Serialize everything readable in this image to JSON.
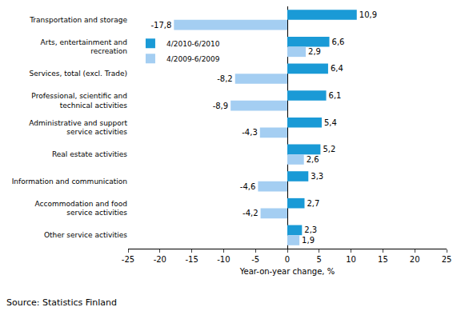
{
  "chart_data": {
    "type": "bar",
    "orientation": "horizontal",
    "categories": [
      "Transportation and storage",
      "Arts, entertainment and recreation",
      "Services, total (excl. Trade)",
      "Professional, scientific and technical activities",
      "Administrative and support service activities",
      "Real estate activities",
      "Information and communication",
      "Accommodation and food service activities",
      "Other service activities"
    ],
    "series": [
      {
        "name": "4/2010-6/2010",
        "color": "#1a9ad6",
        "values": [
          10.9,
          6.6,
          6.4,
          6.1,
          5.4,
          5.2,
          3.3,
          2.7,
          2.3
        ],
        "value_labels": [
          "10,9",
          "6,6",
          "6,4",
          "6,1",
          "5,4",
          "5,2",
          "3,3",
          "2,7",
          "2,3"
        ]
      },
      {
        "name": "4/2009-6/2009",
        "color": "#a4cef2",
        "values": [
          -17.8,
          2.9,
          -8.2,
          -8.9,
          -4.3,
          2.6,
          -4.6,
          -4.2,
          1.9
        ],
        "value_labels": [
          "-17,8",
          "2,9",
          "-8,2",
          "-8,9",
          "-4,3",
          "2,6",
          "-4,6",
          "-4,2",
          "1,9"
        ]
      }
    ],
    "x_label": "Year-on-year change, %",
    "xlim": [
      -25,
      25
    ],
    "xticks": [
      -25,
      -20,
      -15,
      -10,
      -5,
      0,
      5,
      10,
      15,
      20,
      25
    ],
    "grid": false,
    "legend": "upper left",
    "data_labels": true,
    "source": "Source: Statistics Finland"
  }
}
